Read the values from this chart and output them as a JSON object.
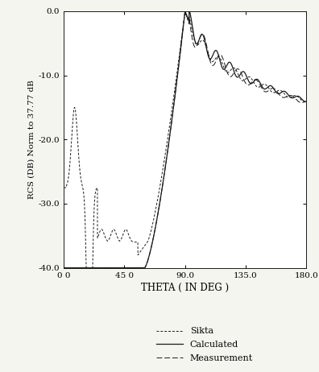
{
  "title": "",
  "xlabel": "THETA ( IN DEG )",
  "ylabel": "RCS (DB) Norm to 37.77 dB",
  "xlim": [
    0,
    180
  ],
  "ylim": [
    -40,
    0
  ],
  "xticks": [
    0,
    45,
    90,
    135,
    180
  ],
  "xtick_labels": [
    "0 0",
    "45 0",
    "90.0",
    "135.0",
    "180.0"
  ],
  "yticks": [
    0,
    -10,
    -20,
    -30,
    -40
  ],
  "ytick_labels": [
    "0.0",
    "-10.0",
    "-20.0",
    "-30.0",
    "-40.0"
  ],
  "legend_entries": [
    "Sikta",
    "Calculated",
    "Measurement"
  ],
  "bg_color": "#ffffff",
  "line_color": "#1a1a1a",
  "fig_bg": "#f5f5f0"
}
